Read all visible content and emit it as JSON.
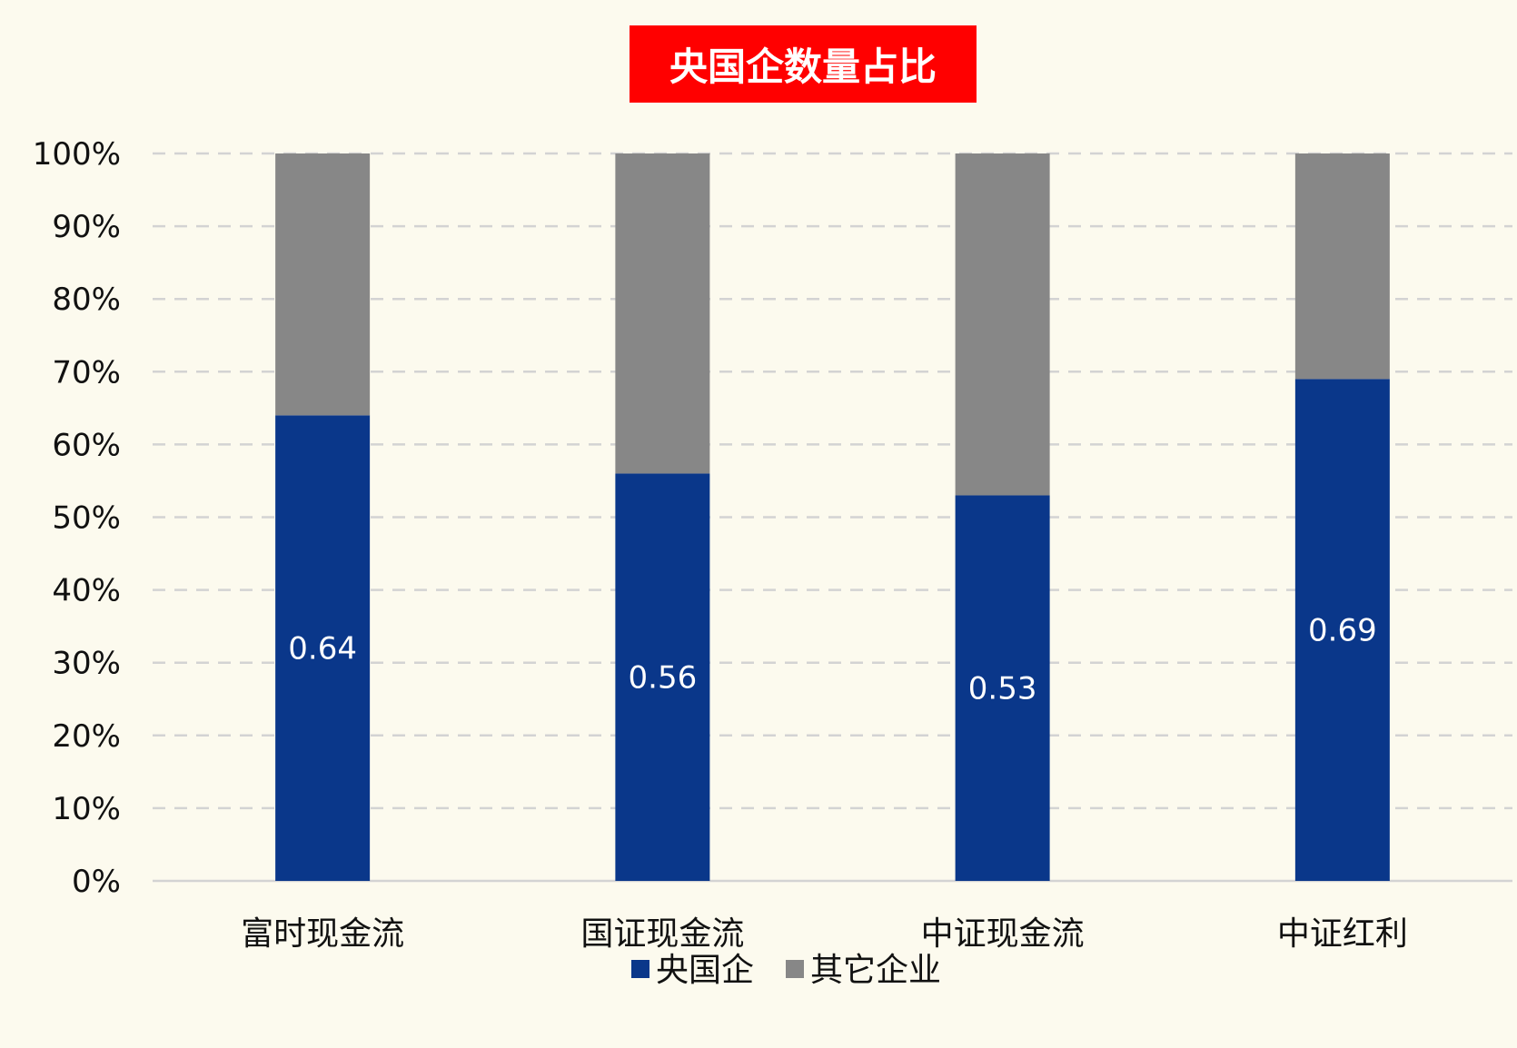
{
  "chart_data": {
    "type": "bar",
    "stacked": true,
    "title": "央国企数量占比",
    "categories": [
      "富时现金流",
      "国证现金流",
      "中证现金流",
      "中证红利"
    ],
    "series": [
      {
        "name": "央国企",
        "values": [
          0.64,
          0.56,
          0.53,
          0.69
        ],
        "color": "#0a378a",
        "labels": [
          "0.64",
          "0.56",
          "0.53",
          "0.69"
        ]
      },
      {
        "name": "其它企业",
        "values": [
          0.36,
          0.44,
          0.47,
          0.31
        ],
        "color": "#878787"
      }
    ],
    "ylim": [
      0,
      1
    ],
    "yticks": [
      "0%",
      "10%",
      "20%",
      "30%",
      "40%",
      "50%",
      "60%",
      "70%",
      "80%",
      "90%",
      "100%"
    ],
    "grid": true,
    "legend": "bottom"
  },
  "colors": {
    "background": "#fcfaee",
    "title_bg": "#ff0000",
    "title_text": "#ffffff",
    "grid": "#d3d3d3",
    "axis_text": "#111111",
    "data_label": "#ffffff"
  }
}
